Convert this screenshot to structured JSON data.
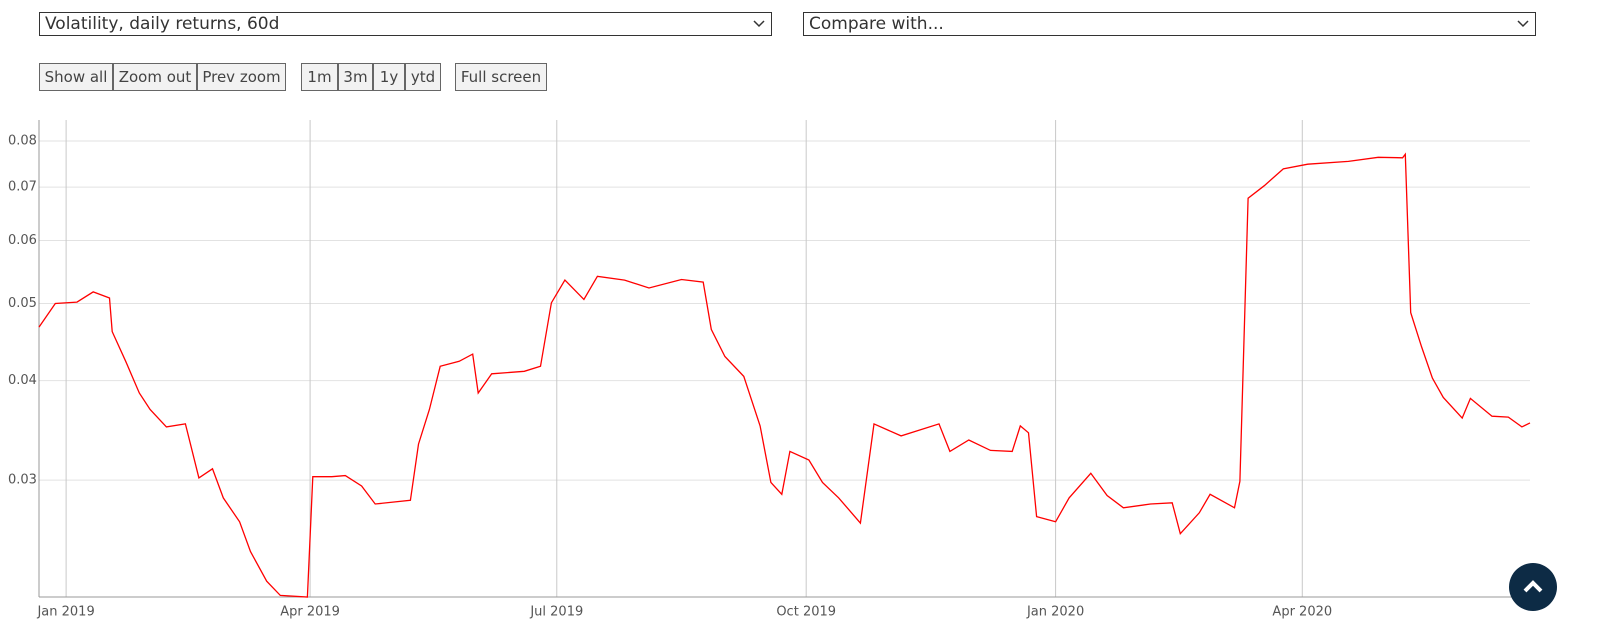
{
  "controls": {
    "metric_select": "Volatility, daily returns, 60d",
    "compare_select": "Compare with...",
    "buttons": [
      "Show all",
      "Zoom out",
      "Prev zoom",
      "1m",
      "3m",
      "1y",
      "ytd",
      "Full screen"
    ]
  },
  "chart_data": {
    "type": "line",
    "log_y": true,
    "grid": true,
    "x": [
      -10,
      -4,
      4,
      10,
      16,
      17,
      22,
      27,
      31,
      37,
      44,
      49,
      54,
      58,
      64,
      68,
      74,
      79,
      89,
      91,
      98,
      103,
      109,
      114,
      127,
      130,
      134,
      138,
      145,
      150,
      152,
      157,
      169,
      175,
      179,
      184,
      191,
      196,
      206,
      215,
      227,
      235,
      238,
      243,
      250,
      256,
      260,
      264,
      267,
      274,
      279,
      285,
      293,
      298,
      308,
      322,
      326,
      333,
      341,
      349,
      352,
      355,
      358,
      365,
      370,
      378,
      384,
      390,
      400,
      408,
      411,
      418,
      422,
      431,
      433,
      436,
      442,
      449,
      458,
      473,
      484,
      493,
      494,
      496,
      500,
      504,
      508,
      515,
      518,
      526,
      532,
      537,
      540
    ],
    "series": [
      {
        "color": "#ff0000",
        "values": [
          0.0467,
          0.05,
          0.0502,
          0.0517,
          0.0508,
          0.0461,
          0.0423,
          0.0386,
          0.0368,
          0.035,
          0.0353,
          0.0302,
          0.031,
          0.0285,
          0.0266,
          0.0244,
          0.0224,
          0.0215,
          0.0214,
          0.0303,
          0.0303,
          0.0304,
          0.0295,
          0.028,
          0.0283,
          0.0333,
          0.0368,
          0.0417,
          0.0423,
          0.0432,
          0.0386,
          0.0408,
          0.0411,
          0.0417,
          0.0501,
          0.0535,
          0.0506,
          0.0541,
          0.0535,
          0.0523,
          0.0536,
          0.0532,
          0.0464,
          0.0429,
          0.0405,
          0.0351,
          0.0298,
          0.0288,
          0.0326,
          0.0318,
          0.0298,
          0.0285,
          0.0265,
          0.0353,
          0.0341,
          0.0353,
          0.0326,
          0.0337,
          0.0327,
          0.0326,
          0.0351,
          0.0344,
          0.027,
          0.0266,
          0.0285,
          0.0306,
          0.0287,
          0.0277,
          0.028,
          0.0281,
          0.0257,
          0.0273,
          0.0288,
          0.0277,
          0.0299,
          0.0678,
          0.0703,
          0.0738,
          0.0748,
          0.0754,
          0.0763,
          0.0762,
          0.077,
          0.0487,
          0.0441,
          0.0403,
          0.0381,
          0.0359,
          0.038,
          0.0361,
          0.036,
          0.035,
          0.0354
        ]
      }
    ],
    "xlim": [
      -10,
      540
    ],
    "xticks": [
      {
        "value": 0,
        "label": "Jan 2019"
      },
      {
        "value": 90,
        "label": "Apr 2019"
      },
      {
        "value": 181,
        "label": "Jul 2019"
      },
      {
        "value": 273,
        "label": "Oct 2019"
      },
      {
        "value": 365,
        "label": "Jan 2020"
      },
      {
        "value": 456,
        "label": "Apr 2020"
      }
    ],
    "ylim": [
      0.0214,
      0.085
    ],
    "yticks": [
      0.03,
      0.04,
      0.05,
      0.06,
      0.07,
      0.08
    ]
  }
}
